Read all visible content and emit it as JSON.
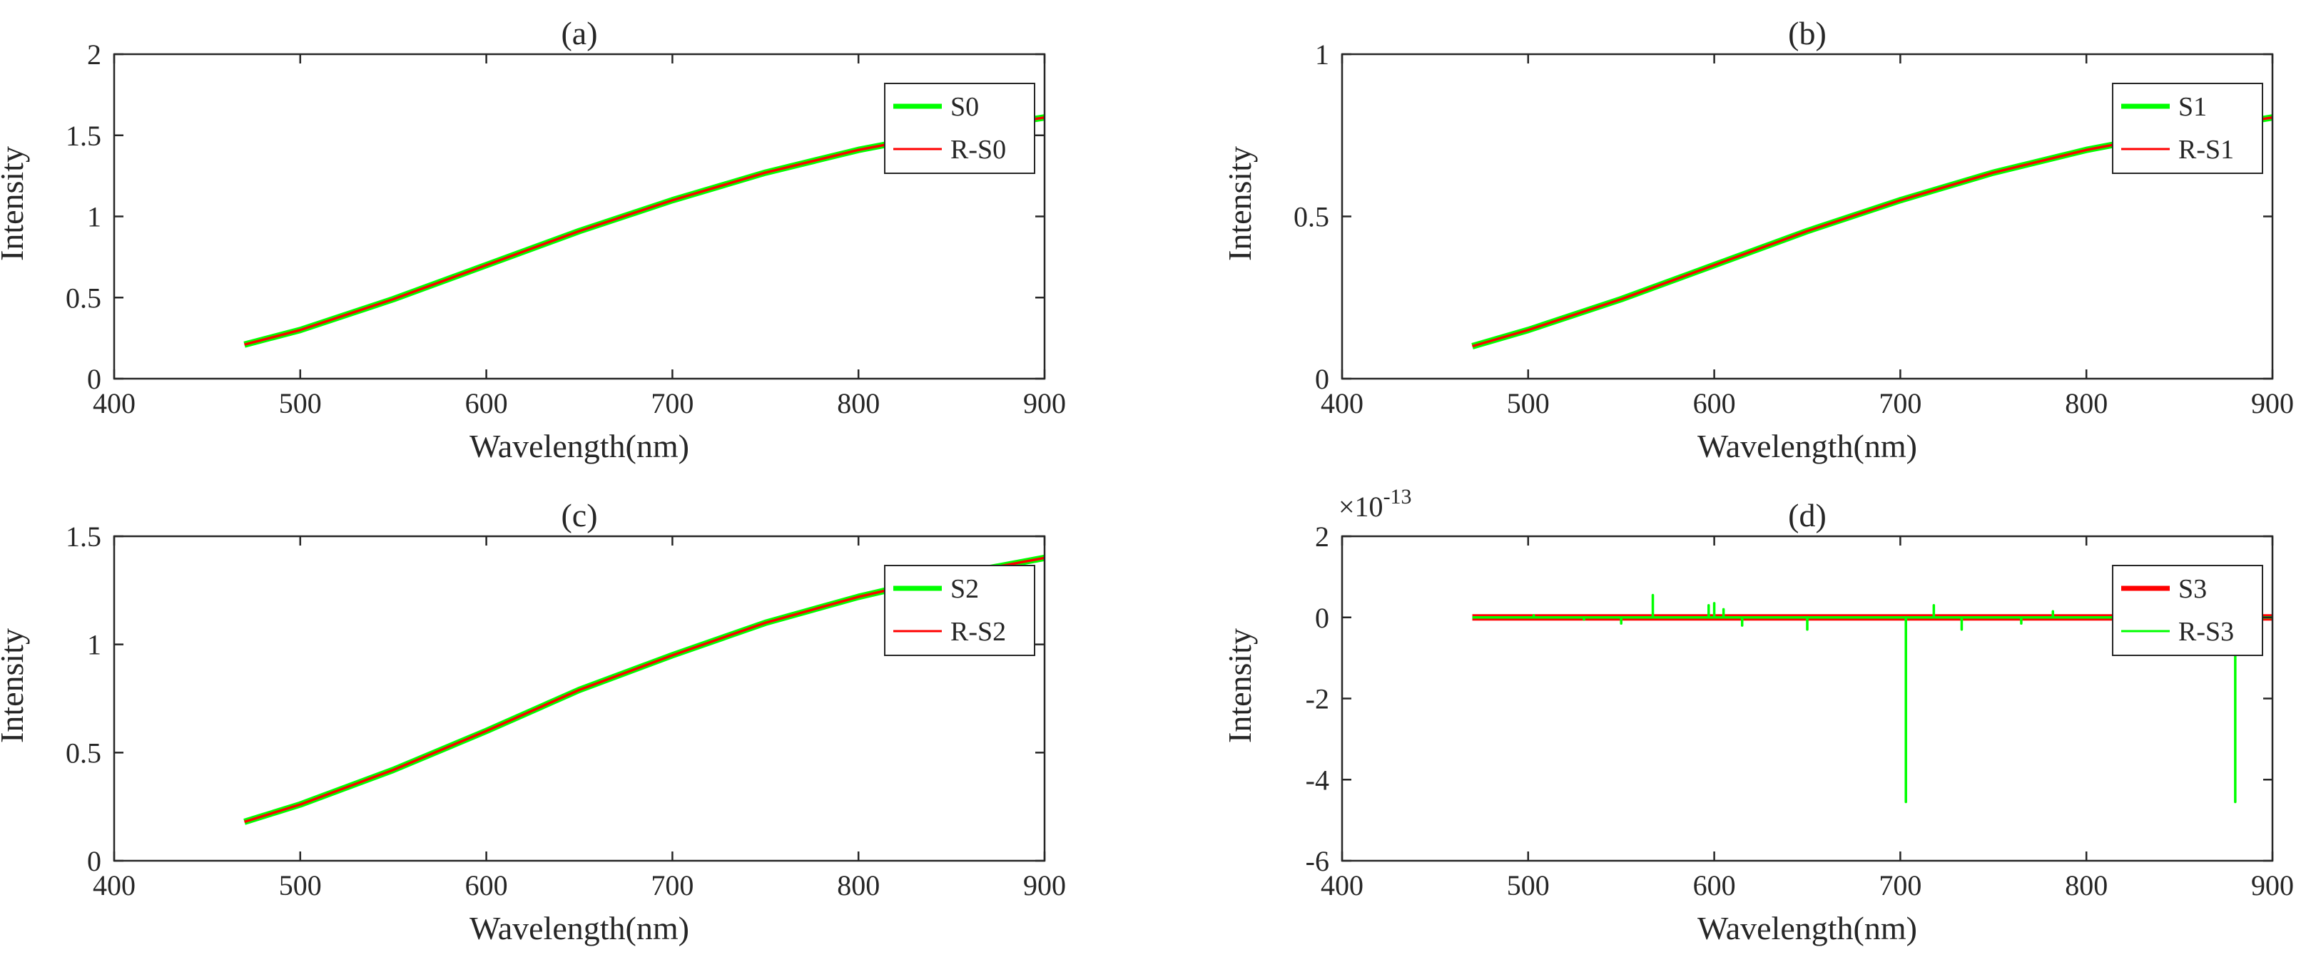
{
  "chart_data": [
    {
      "panel": "a",
      "type": "line",
      "title": "(a)",
      "xlabel": "Wavelength(nm)",
      "ylabel": "Intensity",
      "xlim": [
        400,
        900
      ],
      "ylim": [
        0,
        2
      ],
      "xticks": [
        400,
        500,
        600,
        700,
        800,
        900
      ],
      "yticks": [
        0,
        0.5,
        1,
        1.5,
        2
      ],
      "xtick_labels": [
        "400",
        "500",
        "600",
        "700",
        "800",
        "900"
      ],
      "ytick_labels": [
        "0",
        "0.5",
        "1",
        "1.5",
        "2"
      ],
      "legend_position": "top-right",
      "series": [
        {
          "name": "S0",
          "color": "#00ff00",
          "style": "thick",
          "x": [
            470,
            500,
            550,
            600,
            650,
            700,
            750,
            800,
            850,
            900
          ],
          "y": [
            0.21,
            0.3,
            0.49,
            0.7,
            0.91,
            1.1,
            1.27,
            1.41,
            1.52,
            1.61
          ]
        },
        {
          "name": "R-S0",
          "color": "#ff0000",
          "style": "thin",
          "x": [
            470,
            500,
            550,
            600,
            650,
            700,
            750,
            800,
            850,
            900
          ],
          "y": [
            0.21,
            0.3,
            0.49,
            0.7,
            0.91,
            1.1,
            1.27,
            1.41,
            1.52,
            1.61
          ]
        }
      ]
    },
    {
      "panel": "b",
      "type": "line",
      "title": "(b)",
      "xlabel": "Wavelength(nm)",
      "ylabel": "Intensity",
      "xlim": [
        400,
        900
      ],
      "ylim": [
        0,
        1
      ],
      "xticks": [
        400,
        500,
        600,
        700,
        800,
        900
      ],
      "yticks": [
        0,
        0.5,
        1
      ],
      "xtick_labels": [
        "400",
        "500",
        "600",
        "700",
        "800",
        "900"
      ],
      "ytick_labels": [
        "0",
        "0.5",
        "1"
      ],
      "legend_position": "top-right",
      "series": [
        {
          "name": "S1",
          "color": "#00ff00",
          "style": "thick",
          "x": [
            470,
            500,
            550,
            600,
            650,
            700,
            750,
            800,
            850,
            900
          ],
          "y": [
            0.1,
            0.15,
            0.245,
            0.35,
            0.455,
            0.55,
            0.635,
            0.705,
            0.76,
            0.805
          ]
        },
        {
          "name": "R-S1",
          "color": "#ff0000",
          "style": "thin",
          "x": [
            470,
            500,
            550,
            600,
            650,
            700,
            750,
            800,
            850,
            900
          ],
          "y": [
            0.1,
            0.15,
            0.245,
            0.35,
            0.455,
            0.55,
            0.635,
            0.705,
            0.76,
            0.805
          ]
        }
      ]
    },
    {
      "panel": "c",
      "type": "line",
      "title": "(c)",
      "xlabel": "Wavelength(nm)",
      "ylabel": "Intensity",
      "xlim": [
        400,
        900
      ],
      "ylim": [
        0,
        1.5
      ],
      "xticks": [
        400,
        500,
        600,
        700,
        800,
        900
      ],
      "yticks": [
        0,
        0.5,
        1,
        1.5
      ],
      "xtick_labels": [
        "400",
        "500",
        "600",
        "700",
        "800",
        "900"
      ],
      "ytick_labels": [
        "0",
        "0.5",
        "1",
        "1.5"
      ],
      "legend_position": "top-right",
      "series": [
        {
          "name": "S2",
          "color": "#00ff00",
          "style": "thick",
          "x": [
            470,
            500,
            550,
            600,
            650,
            700,
            750,
            800,
            850,
            900
          ],
          "y": [
            0.18,
            0.26,
            0.42,
            0.6,
            0.79,
            0.95,
            1.1,
            1.22,
            1.32,
            1.4
          ]
        },
        {
          "name": "R-S2",
          "color": "#ff0000",
          "style": "thin",
          "x": [
            470,
            500,
            550,
            600,
            650,
            700,
            750,
            800,
            850,
            900
          ],
          "y": [
            0.18,
            0.26,
            0.42,
            0.6,
            0.79,
            0.95,
            1.1,
            1.22,
            1.32,
            1.4
          ]
        }
      ]
    },
    {
      "panel": "d",
      "type": "line",
      "title": "(d)",
      "xlabel": "Wavelength(nm)",
      "ylabel": "Intensity",
      "xlim": [
        400,
        900
      ],
      "ylim": [
        -6,
        2
      ],
      "xticks": [
        400,
        500,
        600,
        700,
        800,
        900
      ],
      "yticks": [
        -6,
        -4,
        -2,
        0,
        2
      ],
      "xtick_labels": [
        "400",
        "500",
        "600",
        "700",
        "800",
        "900"
      ],
      "ytick_labels": [
        "-6",
        "-4",
        "-2",
        "0",
        "2"
      ],
      "y_exponent_base": "×10",
      "y_exponent_power": "-13",
      "legend_position": "top-right",
      "series": [
        {
          "name": "S3",
          "color": "#ff0000",
          "style": "thick",
          "x": [
            470,
            900
          ],
          "y": [
            0,
            0
          ]
        },
        {
          "name": "R-S3",
          "color": "#00ff00",
          "style": "thin",
          "x": [
            470,
            503,
            503,
            503,
            530,
            530,
            530,
            550,
            550,
            550,
            567,
            567,
            567,
            597,
            597,
            597,
            600,
            600,
            600,
            605,
            605,
            605,
            615,
            615,
            615,
            650,
            650,
            650,
            703,
            703,
            703,
            718,
            718,
            718,
            733,
            733,
            733,
            765,
            765,
            765,
            782,
            782,
            782,
            880,
            880,
            880,
            900
          ],
          "y": [
            0,
            0,
            0.05,
            0,
            0,
            -0.05,
            0,
            0,
            -0.15,
            0,
            0,
            0.55,
            0,
            0,
            0.3,
            0,
            0,
            0.35,
            0,
            0,
            0.2,
            0,
            0,
            -0.2,
            0,
            0,
            -0.3,
            0,
            0,
            -4.55,
            0,
            0,
            0.3,
            0,
            0,
            -0.3,
            0,
            0,
            -0.15,
            0,
            0,
            0.15,
            0,
            0,
            -4.55,
            0,
            0
          ]
        }
      ]
    }
  ]
}
